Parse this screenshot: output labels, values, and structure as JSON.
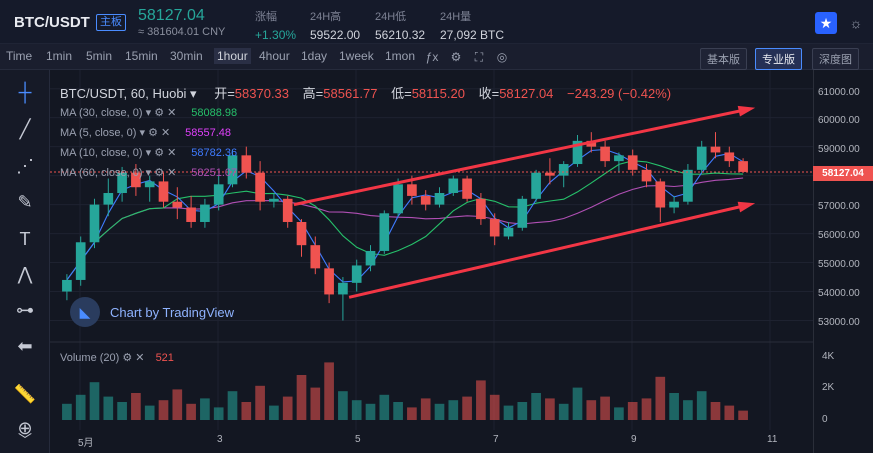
{
  "header": {
    "pair": "BTC/USDT",
    "badge": "主板",
    "price": "58127.04",
    "cny": "≈ 381604.01 CNY",
    "stats": [
      {
        "label": "涨幅",
        "value": "+1.30%"
      },
      {
        "label": "24H高",
        "value": "59522.00"
      },
      {
        "label": "24H低",
        "value": "56210.32"
      },
      {
        "label": "24H量",
        "value": "27,092 BTC"
      }
    ]
  },
  "toolbar": {
    "timeframes": [
      "Time",
      "1min",
      "5min",
      "15min",
      "30min",
      "1hour",
      "4hour",
      "1day",
      "1week",
      "1mon"
    ],
    "active_timeframe": "1hour",
    "versions": [
      "基本版",
      "专业版",
      "深度图"
    ],
    "active_version": "专业版"
  },
  "legend": {
    "symbol": "BTC/USDT, 60, Huobi",
    "open_label": "开=",
    "open": "58370.33",
    "high_label": "高=",
    "high": "58561.77",
    "low_label": "低=",
    "low": "58115.20",
    "close_label": "收=",
    "close": "58127.04",
    "change": "−243.29 (−0.42%)"
  },
  "ma": [
    {
      "label": "MA (30, close, 0)",
      "value": "58088.98",
      "color": "#26c06a"
    },
    {
      "label": "MA (5, close, 0)",
      "value": "58557.48",
      "color": "#e040fb"
    },
    {
      "label": "MA (10, close, 0)",
      "value": "58782.36",
      "color": "#3f7bff"
    },
    {
      "label": "MA (60, close, 0)",
      "value": "58251.07",
      "color": "#b04fb4"
    }
  ],
  "volume": {
    "label": "Volume (20)",
    "value": "521"
  },
  "watermark": "Chart by TradingView",
  "price_axis": [
    "61000.00",
    "60000.00",
    "59000.00",
    "58000.00",
    "57000.00",
    "56000.00",
    "55000.00",
    "54000.00",
    "53000.00"
  ],
  "last_price_tag": "58127.04",
  "volume_axis": [
    "4K",
    "2K",
    "0"
  ],
  "time_axis": [
    "5月",
    "3",
    "5",
    "7",
    "9",
    "11"
  ],
  "colors": {
    "up": "#26a69a",
    "down": "#ef5350",
    "trendline": "#f23645"
  },
  "chart_data": {
    "type": "candlestick",
    "interval": "60",
    "ylim": [
      52500,
      61300
    ],
    "candles": [
      [
        54000,
        54600,
        53700,
        54400
      ],
      [
        54400,
        55900,
        54200,
        55700
      ],
      [
        55700,
        57200,
        55500,
        57000
      ],
      [
        57000,
        57900,
        56600,
        57400
      ],
      [
        57400,
        58300,
        57100,
        58100
      ],
      [
        58100,
        58400,
        57300,
        57600
      ],
      [
        57600,
        58000,
        57100,
        57800
      ],
      [
        57800,
        58100,
        56900,
        57100
      ],
      [
        57100,
        57600,
        56500,
        56900
      ],
      [
        56900,
        57300,
        56200,
        56400
      ],
      [
        56400,
        57200,
        56200,
        57000
      ],
      [
        57000,
        58000,
        56800,
        57700
      ],
      [
        57700,
        58900,
        57600,
        58700
      ],
      [
        58700,
        59000,
        57900,
        58100
      ],
      [
        58100,
        58500,
        56800,
        57100
      ],
      [
        57100,
        57400,
        56900,
        57200
      ],
      [
        57200,
        57300,
        56200,
        56400
      ],
      [
        56400,
        56500,
        55200,
        55600
      ],
      [
        55600,
        55900,
        54600,
        54800
      ],
      [
        54800,
        55000,
        53600,
        53900
      ],
      [
        53900,
        54500,
        53000,
        54300
      ],
      [
        54300,
        55100,
        54000,
        54900
      ],
      [
        54900,
        55600,
        54700,
        55400
      ],
      [
        55400,
        56800,
        55300,
        56700
      ],
      [
        56700,
        57900,
        56600,
        57700
      ],
      [
        57700,
        58000,
        57000,
        57300
      ],
      [
        57300,
        57500,
        56800,
        57000
      ],
      [
        57000,
        57600,
        56900,
        57400
      ],
      [
        57400,
        58000,
        57300,
        57900
      ],
      [
        57900,
        58000,
        57100,
        57200
      ],
      [
        57200,
        57400,
        56300,
        56500
      ],
      [
        56500,
        56700,
        55600,
        55900
      ],
      [
        55900,
        56400,
        55800,
        56200
      ],
      [
        56200,
        57300,
        56100,
        57200
      ],
      [
        57200,
        58200,
        57100,
        58100
      ],
      [
        58100,
        58600,
        57700,
        58000
      ],
      [
        58000,
        58500,
        57600,
        58400
      ],
      [
        58400,
        59400,
        58300,
        59200
      ],
      [
        59200,
        59500,
        58800,
        59000
      ],
      [
        59000,
        59200,
        58300,
        58500
      ],
      [
        58500,
        58800,
        58100,
        58700
      ],
      [
        58700,
        58900,
        58000,
        58200
      ],
      [
        58200,
        58400,
        57600,
        57800
      ],
      [
        57800,
        57900,
        56400,
        56900
      ],
      [
        56900,
        57300,
        56700,
        57100
      ],
      [
        57100,
        58400,
        57000,
        58200
      ],
      [
        58200,
        59200,
        58100,
        59000
      ],
      [
        59000,
        59500,
        58600,
        58800
      ],
      [
        58800,
        59000,
        58300,
        58500
      ],
      [
        58500,
        58600,
        58100,
        58127
      ]
    ],
    "volume": [
      900,
      1400,
      2100,
      1300,
      1000,
      1500,
      800,
      1100,
      1700,
      900,
      1200,
      700,
      1600,
      1000,
      1900,
      800,
      1300,
      2500,
      1800,
      3200,
      1600,
      1100,
      900,
      1400,
      1000,
      700,
      1200,
      900,
      1100,
      1300,
      2200,
      1400,
      800,
      1000,
      1500,
      1200,
      900,
      1800,
      1100,
      1300,
      700,
      1000,
      1200,
      2400,
      1500,
      1100,
      1600,
      1000,
      800,
      521
    ],
    "trendlines": [
      {
        "from": [
          4.1,
          57000
        ],
        "to": [
          10.7,
          60300
        ]
      },
      {
        "from": [
          4.9,
          53800
        ],
        "to": [
          10.7,
          57000
        ]
      }
    ]
  }
}
